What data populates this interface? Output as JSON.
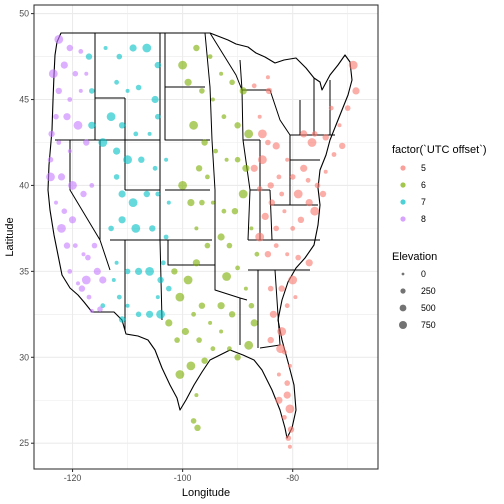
{
  "chart_data": {
    "type": "scatter",
    "title": "",
    "xlabel": "Longitude",
    "ylabel": "Latitude",
    "xlim": [
      -127,
      -64.5
    ],
    "ylim": [
      23.5,
      50.5
    ],
    "x_ticks": [
      -120,
      -100,
      -80
    ],
    "x_tick_labels": [
      "-120",
      "-100",
      "-80"
    ],
    "y_ticks": [
      25,
      30,
      35,
      40,
      45,
      50
    ],
    "y_tick_labels": [
      "25",
      "30",
      "35",
      "40",
      "45",
      "50"
    ],
    "grid": true,
    "legend_placement": "right",
    "color_legend": {
      "title": "factor(`UTC offset`)",
      "entries": [
        {
          "label": "5",
          "color": "#F8766D"
        },
        {
          "label": "6",
          "color": "#7CAE00"
        },
        {
          "label": "7",
          "color": "#00BFC4"
        },
        {
          "label": "8",
          "color": "#C77CFF"
        }
      ]
    },
    "size_legend": {
      "title": "Elevation",
      "entries": [
        {
          "label": "0",
          "value": 0
        },
        {
          "label": "250",
          "value": 250
        },
        {
          "label": "500",
          "value": 500
        },
        {
          "label": "750",
          "value": 750
        }
      ]
    },
    "series": [
      {
        "name": "5",
        "color": "#F8766D",
        "points": [
          [
            -86,
            44
          ],
          [
            -84.5,
            42.5
          ],
          [
            -83,
            42.3
          ],
          [
            -85.5,
            41.5
          ],
          [
            -84,
            40
          ],
          [
            -82.5,
            40.5
          ],
          [
            -81,
            41.5
          ],
          [
            -80,
            40.5
          ],
          [
            -78,
            41
          ],
          [
            -76.5,
            42.5
          ],
          [
            -74,
            42.8
          ],
          [
            -73,
            44.5
          ],
          [
            -71.5,
            43.5
          ],
          [
            -70,
            44.5
          ],
          [
            -68.5,
            45.5
          ],
          [
            -69,
            47
          ],
          [
            -71,
            42.3
          ],
          [
            -72.5,
            41.8
          ],
          [
            -74,
            40.8
          ],
          [
            -75.5,
            40
          ],
          [
            -77,
            39
          ],
          [
            -76,
            38.5
          ],
          [
            -78.5,
            38
          ],
          [
            -80,
            37.5
          ],
          [
            -81.5,
            38.5
          ],
          [
            -83,
            37.5
          ],
          [
            -85,
            38.2
          ],
          [
            -86,
            37
          ],
          [
            -84.5,
            36
          ],
          [
            -83,
            36.5
          ],
          [
            -81,
            36
          ],
          [
            -79,
            35.8
          ],
          [
            -77,
            35.5
          ],
          [
            -80,
            34.5
          ],
          [
            -82,
            34
          ],
          [
            -81,
            33
          ],
          [
            -79.5,
            33.5
          ],
          [
            -84,
            34
          ],
          [
            -83.5,
            32.5
          ],
          [
            -82,
            31.5
          ],
          [
            -84,
            31
          ],
          [
            -81.5,
            30.3
          ],
          [
            -82.5,
            29
          ],
          [
            -81,
            28.5
          ],
          [
            -82.5,
            27.5
          ],
          [
            -80.5,
            27
          ],
          [
            -80.3,
            25.8
          ],
          [
            -81.5,
            26.5
          ],
          [
            -80.5,
            29.5
          ],
          [
            -86,
            39.8
          ],
          [
            -87,
            41
          ],
          [
            -85.5,
            43
          ],
          [
            -84.3,
            45.5
          ],
          [
            -87,
            45.8
          ],
          [
            -84.5,
            46.3
          ],
          [
            -76,
            43
          ],
          [
            -78,
            43
          ],
          [
            -79,
            39.5
          ],
          [
            -74.5,
            39.5
          ],
          [
            -82,
            39.5
          ],
          [
            -80.5,
            24.8
          ],
          [
            -80.8,
            25.3
          ],
          [
            -81,
            27.8
          ],
          [
            -82.2,
            30.5
          ],
          [
            -83.8,
            39
          ],
          [
            -77.2,
            40.3
          ]
        ]
      },
      {
        "name": "6",
        "color": "#7CAE00",
        "points": [
          [
            -100,
            47
          ],
          [
            -97.5,
            48
          ],
          [
            -95,
            47.5
          ],
          [
            -93,
            46.5
          ],
          [
            -91,
            46
          ],
          [
            -89,
            45.5
          ],
          [
            -88,
            43
          ],
          [
            -90,
            43.5
          ],
          [
            -92.5,
            44
          ],
          [
            -94.5,
            45
          ],
          [
            -96.5,
            45.5
          ],
          [
            -99,
            46
          ],
          [
            -98,
            43.5
          ],
          [
            -96,
            42.5
          ],
          [
            -94,
            42
          ],
          [
            -92,
            41.5
          ],
          [
            -90,
            41.5
          ],
          [
            -88.5,
            41
          ],
          [
            -89,
            39.5
          ],
          [
            -90.5,
            38.5
          ],
          [
            -92.5,
            38.5
          ],
          [
            -94.5,
            39
          ],
          [
            -96.5,
            39
          ],
          [
            -98.5,
            39
          ],
          [
            -100,
            40
          ],
          [
            -97,
            41
          ],
          [
            -95.5,
            40.5
          ],
          [
            -97.5,
            37.5
          ],
          [
            -95.5,
            36.5
          ],
          [
            -97.5,
            35.5
          ],
          [
            -99,
            34.5
          ],
          [
            -96.5,
            33
          ],
          [
            -98,
            32.5
          ],
          [
            -95,
            32
          ],
          [
            -97,
            31
          ],
          [
            -99.5,
            31.5
          ],
          [
            -98.5,
            29.5
          ],
          [
            -96,
            29.8
          ],
          [
            -94.5,
            30.5
          ],
          [
            -97.5,
            27.8
          ],
          [
            -98,
            26.3
          ],
          [
            -93,
            33
          ],
          [
            -92,
            34.7
          ],
          [
            -91,
            32.5
          ],
          [
            -90,
            35.2
          ],
          [
            -88.5,
            34
          ],
          [
            -87.5,
            33
          ],
          [
            -87,
            32
          ],
          [
            -88,
            30.7
          ],
          [
            -90,
            30
          ],
          [
            -91.5,
            30.5
          ],
          [
            -93,
            31.5
          ],
          [
            -101,
            31
          ],
          [
            -102.5,
            32
          ],
          [
            -100.5,
            33.5
          ],
          [
            -101.5,
            35
          ],
          [
            -86.5,
            36
          ],
          [
            -87.5,
            37.5
          ],
          [
            -91.5,
            36.5
          ],
          [
            -93,
            37
          ],
          [
            -100.5,
            29
          ],
          [
            -97.3,
            25.9
          ]
        ]
      },
      {
        "name": "7",
        "color": "#00BFC4",
        "points": [
          [
            -114,
            48
          ],
          [
            -111.5,
            47.5
          ],
          [
            -109,
            48
          ],
          [
            -106.5,
            48
          ],
          [
            -104.5,
            47
          ],
          [
            -112,
            46
          ],
          [
            -110,
            45.5
          ],
          [
            -108,
            45.7
          ],
          [
            -105,
            45
          ],
          [
            -113,
            44
          ],
          [
            -111,
            43.5
          ],
          [
            -108.5,
            43
          ],
          [
            -106,
            43
          ],
          [
            -104.5,
            44
          ],
          [
            -112,
            42
          ],
          [
            -110,
            41.5
          ],
          [
            -107.5,
            41.5
          ],
          [
            -105,
            41
          ],
          [
            -103,
            41.5
          ],
          [
            -112,
            40.5
          ],
          [
            -111,
            39.5
          ],
          [
            -109,
            39
          ],
          [
            -106.5,
            39.5
          ],
          [
            -104.5,
            39.5
          ],
          [
            -102.5,
            39
          ],
          [
            -113,
            37.5
          ],
          [
            -111,
            38
          ],
          [
            -108.5,
            37.5
          ],
          [
            -105.5,
            37.5
          ],
          [
            -103,
            37
          ],
          [
            -112,
            35.5
          ],
          [
            -110,
            35
          ],
          [
            -108,
            35
          ],
          [
            -106,
            35
          ],
          [
            -104,
            34.5
          ],
          [
            -111.5,
            33.5
          ],
          [
            -110,
            33
          ],
          [
            -108,
            32.5
          ],
          [
            -106,
            32.5
          ],
          [
            -104,
            32.5
          ],
          [
            -111,
            32.2
          ],
          [
            -114.5,
            33
          ],
          [
            -112.5,
            34.5
          ],
          [
            -116.5,
            45.5
          ],
          [
            -116.5,
            43.5
          ],
          [
            -114.5,
            42.5
          ],
          [
            -117,
            47.5
          ],
          [
            -103.5,
            35.5
          ],
          [
            -104.5,
            33.5
          ],
          [
            -102.5,
            34
          ]
        ]
      },
      {
        "name": "8",
        "color": "#C77CFF",
        "points": [
          [
            -122.5,
            48.5
          ],
          [
            -120.5,
            48
          ],
          [
            -118.5,
            47.8
          ],
          [
            -117.5,
            46.5
          ],
          [
            -119.5,
            46.5
          ],
          [
            -121.5,
            47
          ],
          [
            -123.5,
            46.5
          ],
          [
            -122.5,
            45.5
          ],
          [
            -120.5,
            45
          ],
          [
            -118.5,
            45.5
          ],
          [
            -123,
            44
          ],
          [
            -121,
            44
          ],
          [
            -119,
            43.5
          ],
          [
            -117.5,
            42.5
          ],
          [
            -122.5,
            42.5
          ],
          [
            -120.5,
            42
          ],
          [
            -124,
            41.5
          ],
          [
            -122,
            40.5
          ],
          [
            -120,
            40
          ],
          [
            -118,
            39.5
          ],
          [
            -116.5,
            40
          ],
          [
            -123,
            39
          ],
          [
            -121.5,
            38.5
          ],
          [
            -120,
            38
          ],
          [
            -122,
            37.5
          ],
          [
            -121,
            36.5
          ],
          [
            -119.5,
            36.5
          ],
          [
            -118,
            36
          ],
          [
            -116,
            36.5
          ],
          [
            -115.5,
            35
          ],
          [
            -117.5,
            34.5
          ],
          [
            -118.3,
            34
          ],
          [
            -117,
            33.5
          ],
          [
            -116.5,
            32.7
          ],
          [
            -115,
            32.8
          ],
          [
            -114.5,
            34.5
          ],
          [
            -124,
            40.5
          ],
          [
            -123.8,
            43
          ],
          [
            -120.5,
            35
          ],
          [
            -119,
            34.3
          ],
          [
            -117.2,
            35.8
          ]
        ]
      }
    ]
  }
}
